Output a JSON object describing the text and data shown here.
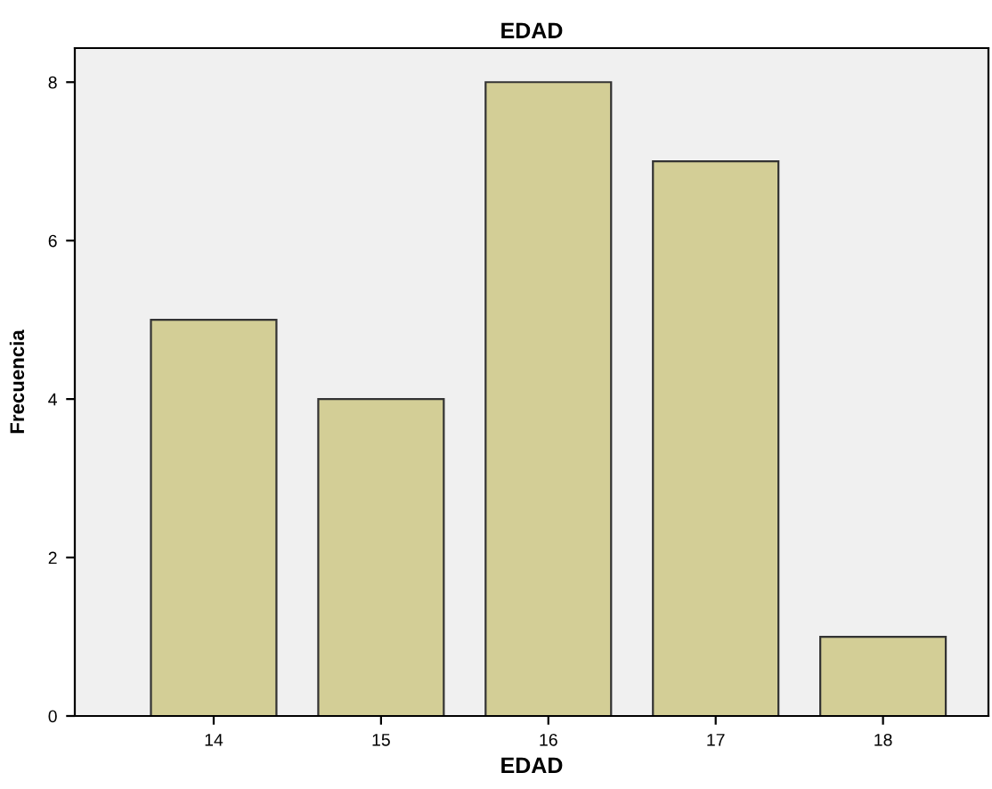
{
  "chart_data": {
    "type": "bar",
    "title": "EDAD",
    "xlabel": "EDAD",
    "ylabel": "Frecuencia",
    "categories": [
      "14",
      "15",
      "16",
      "17",
      "18"
    ],
    "values": [
      5,
      4,
      8,
      7,
      1
    ],
    "color": "#d3ce96",
    "ylim": [
      0,
      8.43
    ],
    "yticks": [
      0,
      2,
      4,
      6,
      8
    ],
    "grid": false,
    "legend": false
  }
}
